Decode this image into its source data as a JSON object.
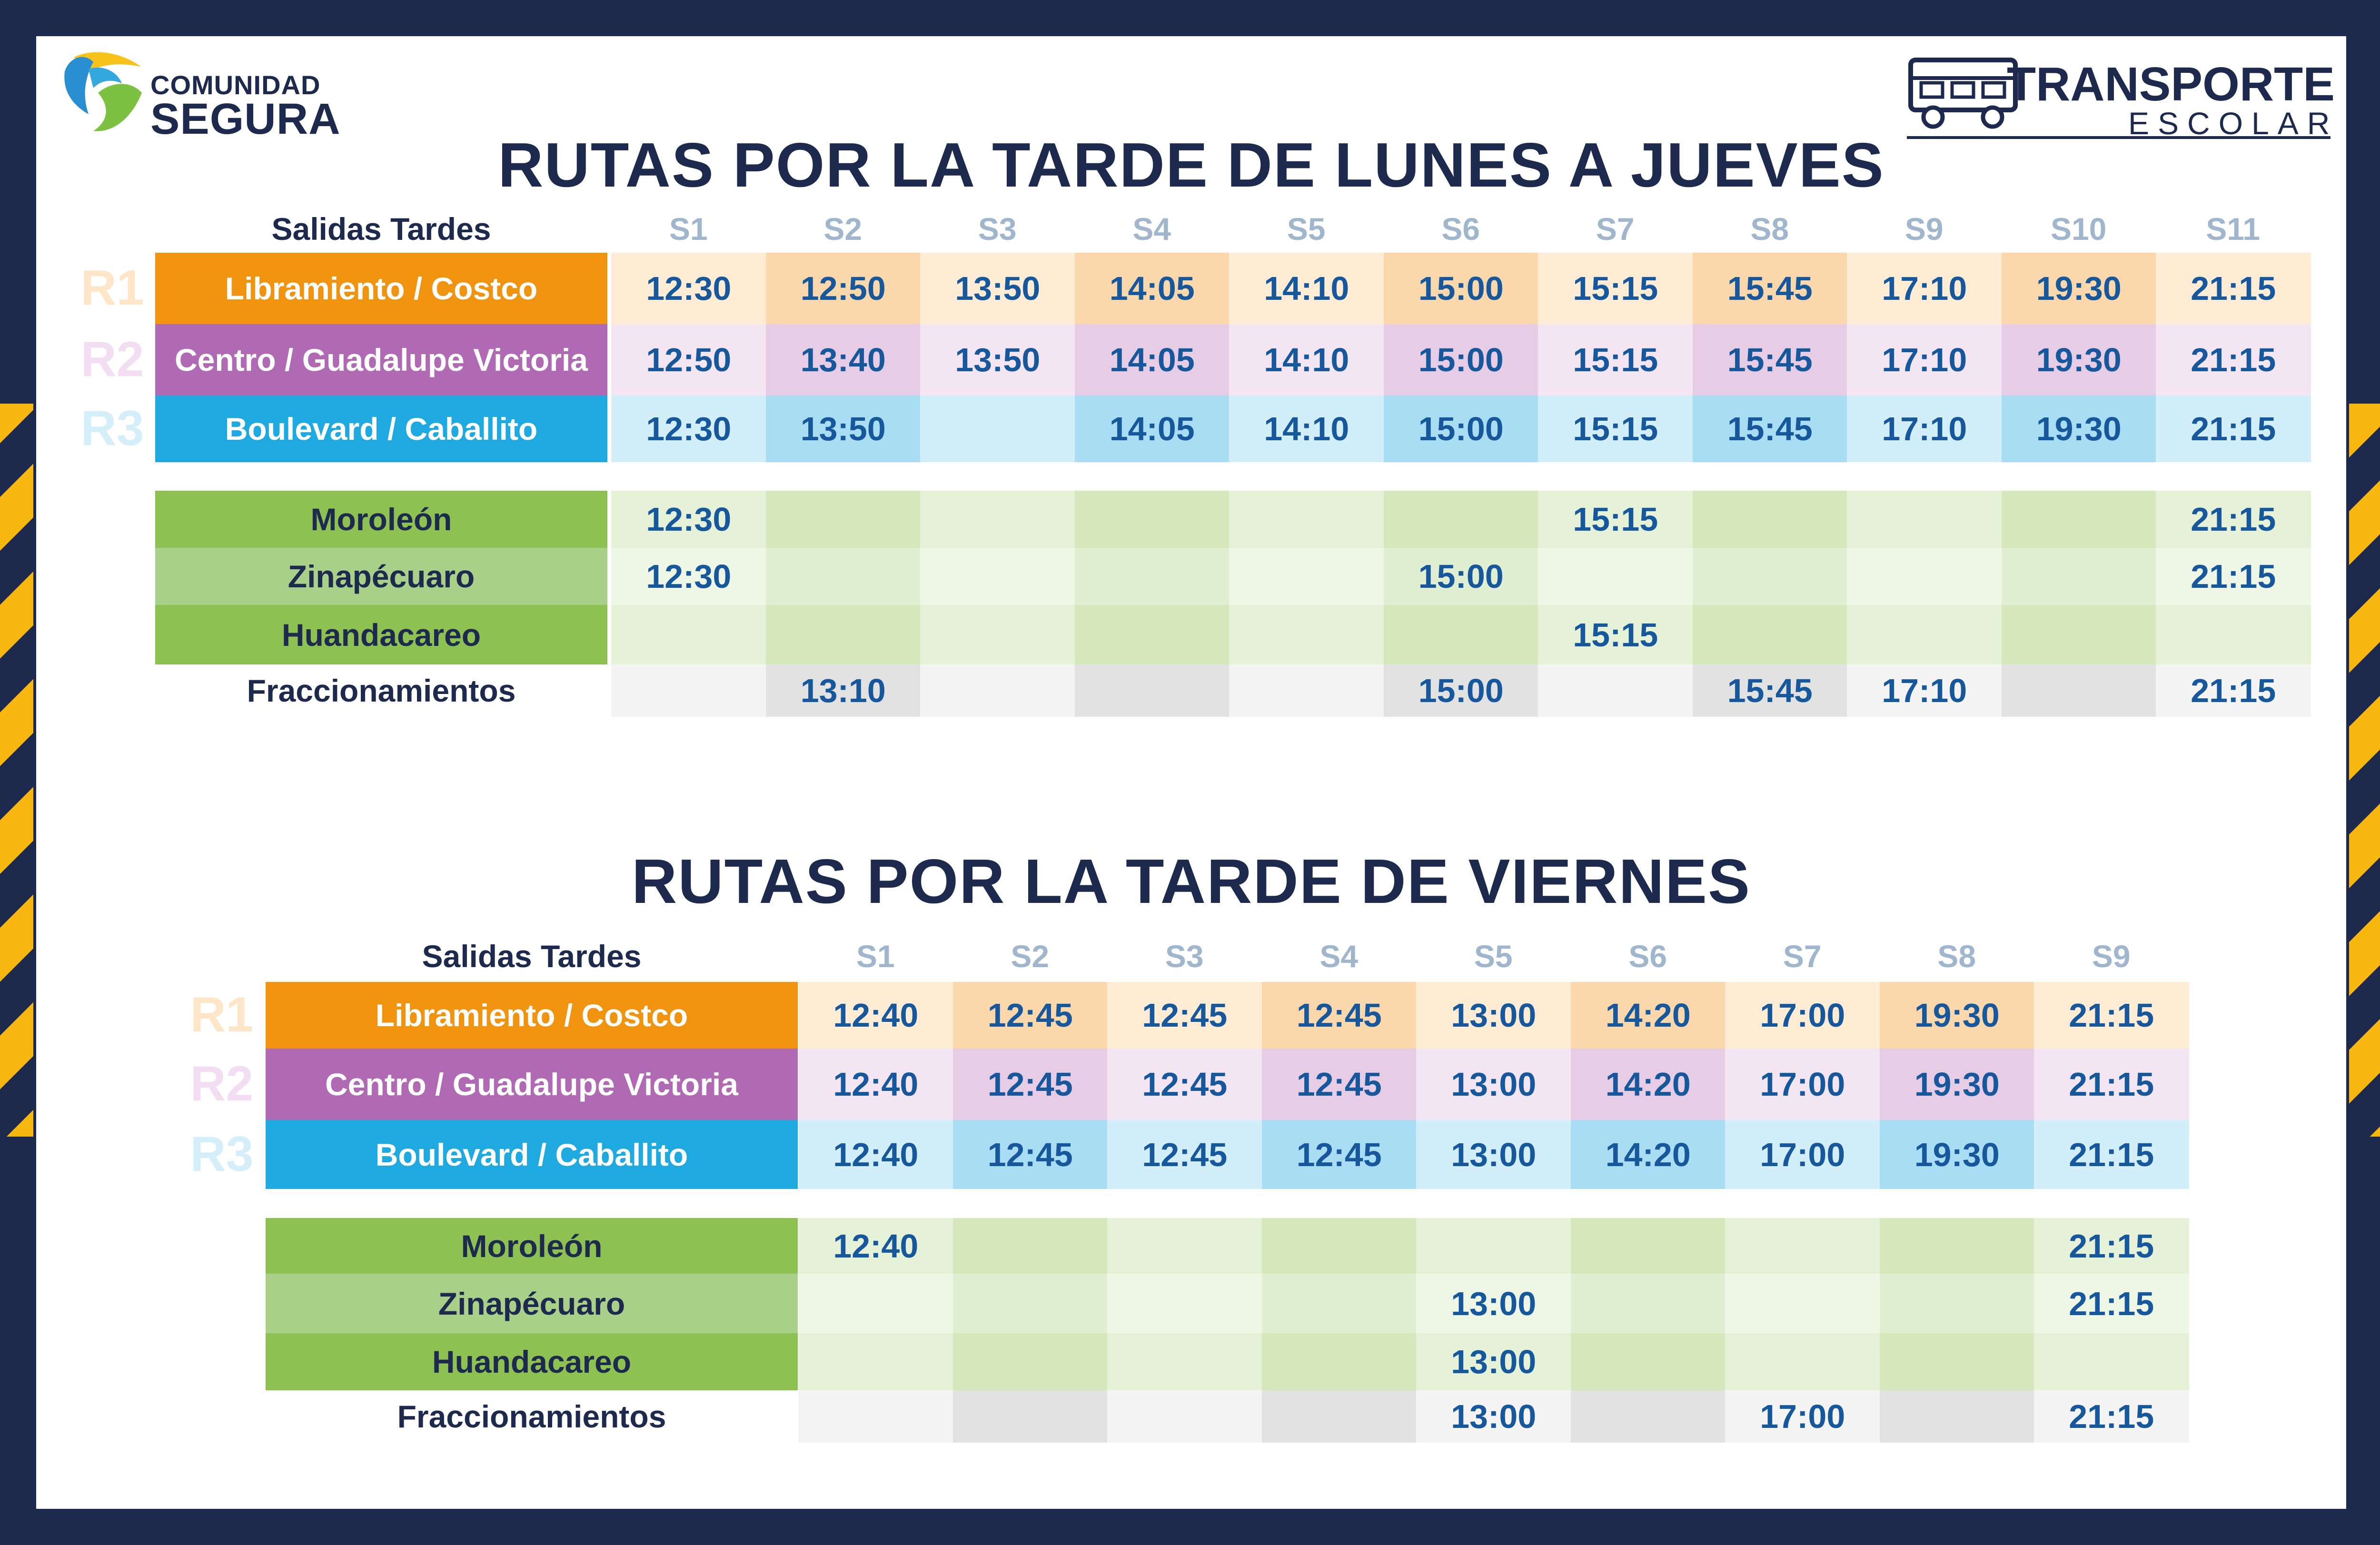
{
  "logo": {
    "line1": "COMUNIDAD",
    "line2": "SEGURA",
    "icon": "hands-logo-icon"
  },
  "brand": {
    "line1": "TRANSPORTE",
    "line2": "ESCOLAR",
    "icon": "bus-icon"
  },
  "colors": {
    "navy": "#1d2a4d",
    "stripe": "#f7b70f",
    "time": "#17589c",
    "r1": "#f0930f",
    "r2": "#b06ab3",
    "r3": "#1fa9e1",
    "green1": "#8dc252",
    "green2": "#a9d089",
    "gray": "#ededed"
  },
  "tables": [
    {
      "title": "RUTAS POR LA TARDE DE LUNES A JUEVES",
      "header": "Salidas Tardes",
      "slots": [
        "S1",
        "S2",
        "S3",
        "S4",
        "S5",
        "S6",
        "S7",
        "S8",
        "S9",
        "S10",
        "S11"
      ],
      "routes": [
        {
          "label": "R1",
          "name": "Libramiento / Costco",
          "times": [
            "12:30",
            "12:50",
            "13:50",
            "14:05",
            "14:10",
            "15:00",
            "15:15",
            "15:45",
            "17:10",
            "19:30",
            "21:15"
          ]
        },
        {
          "label": "R2",
          "name": "Centro / Guadalupe Victoria",
          "times": [
            "12:50",
            "13:40",
            "13:50",
            "14:05",
            "14:10",
            "15:00",
            "15:15",
            "15:45",
            "17:10",
            "19:30",
            "21:15"
          ]
        },
        {
          "label": "R3",
          "name": "Boulevard / Caballito",
          "times": [
            "12:30",
            "13:50",
            "",
            "14:05",
            "14:10",
            "15:00",
            "15:15",
            "15:45",
            "17:10",
            "19:30",
            "21:15"
          ]
        }
      ],
      "locals": [
        {
          "name": "Moroleón",
          "times": [
            "12:30",
            "",
            "",
            "",
            "",
            "",
            "15:15",
            "",
            "",
            "",
            "21:15"
          ]
        },
        {
          "name": "Zinapécuaro",
          "times": [
            "12:30",
            "",
            "",
            "",
            "",
            "15:00",
            "",
            "",
            "",
            "",
            "21:15"
          ]
        },
        {
          "name": "Huandacareo",
          "times": [
            "",
            "",
            "",
            "",
            "",
            "",
            "15:15",
            "",
            "",
            "",
            ""
          ]
        },
        {
          "name": "Fraccionamientos",
          "times": [
            "",
            "13:10",
            "",
            "",
            "",
            "15:00",
            "",
            "15:45",
            "17:10",
            "",
            "21:15"
          ]
        }
      ]
    },
    {
      "title": "RUTAS POR LA TARDE DE VIERNES",
      "header": "Salidas Tardes",
      "slots": [
        "S1",
        "S2",
        "S3",
        "S4",
        "S5",
        "S6",
        "S7",
        "S8",
        "S9"
      ],
      "routes": [
        {
          "label": "R1",
          "name": "Libramiento / Costco",
          "times": [
            "12:40",
            "12:45",
            "12:45",
            "12:45",
            "13:00",
            "14:20",
            "17:00",
            "19:30",
            "21:15"
          ]
        },
        {
          "label": "R2",
          "name": "Centro / Guadalupe Victoria",
          "times": [
            "12:40",
            "12:45",
            "12:45",
            "12:45",
            "13:00",
            "14:20",
            "17:00",
            "19:30",
            "21:15"
          ]
        },
        {
          "label": "R3",
          "name": "Boulevard / Caballito",
          "times": [
            "12:40",
            "12:45",
            "12:45",
            "12:45",
            "13:00",
            "14:20",
            "17:00",
            "19:30",
            "21:15"
          ]
        }
      ],
      "locals": [
        {
          "name": "Moroleón",
          "times": [
            "12:40",
            "",
            "",
            "",
            "",
            "",
            "",
            "",
            "21:15"
          ]
        },
        {
          "name": "Zinapécuaro",
          "times": [
            "",
            "",
            "",
            "",
            "13:00",
            "",
            "",
            "",
            "21:15"
          ]
        },
        {
          "name": "Huandacareo",
          "times": [
            "",
            "",
            "",
            "",
            "13:00",
            "",
            "",
            "",
            ""
          ]
        },
        {
          "name": "Fraccionamientos",
          "times": [
            "",
            "",
            "",
            "",
            "13:00",
            "",
            "17:00",
            "",
            "21:15"
          ]
        }
      ]
    }
  ]
}
